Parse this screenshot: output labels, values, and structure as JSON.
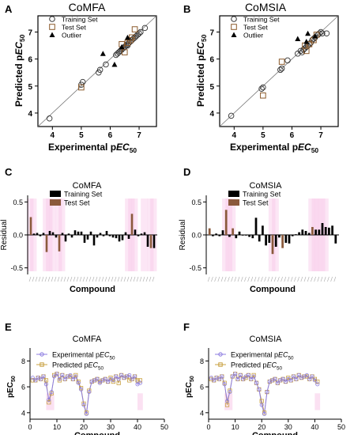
{
  "colors": {
    "circle_stroke": "#333333",
    "square_stroke": "#8b5a2b",
    "outlier": "#000000",
    "training_bar": "#000000",
    "test_bar": "#8b5a3c",
    "test_bar_alt": "#a0522d",
    "pink_bg": "#f8c8e8",
    "exp_line": "#8c7ce0",
    "pred_line": "#c8a040"
  },
  "panels": {
    "A": {
      "letter": "A",
      "title": "CoMFA"
    },
    "B": {
      "letter": "B",
      "title": "CoMSIA"
    },
    "C": {
      "letter": "C",
      "title": "CoMFA"
    },
    "D": {
      "letter": "D",
      "title": "CoMSIA"
    },
    "E": {
      "letter": "E",
      "title": "CoMFA"
    },
    "F": {
      "letter": "F",
      "title": "CoMSIA"
    }
  },
  "chart_data": [
    {
      "panel": "A",
      "type": "scatter",
      "title": "CoMFA",
      "xlabel_main": "Experimental p",
      "xlabel_ital": "EC",
      "xlabel_sub": "50",
      "ylabel_main": "Predicted p",
      "ylabel_ital": "EC",
      "ylabel_sub": "50",
      "xlim": [
        3.5,
        7.6
      ],
      "ylim": [
        3.5,
        7.6
      ],
      "xticks": [
        "4",
        "5",
        "6",
        "7"
      ],
      "yticks": [
        "4",
        "5",
        "6",
        "7"
      ],
      "legend": [
        "Training Set",
        "Test Set",
        "Outlier"
      ],
      "series": [
        {
          "name": "Training Set",
          "x": [
            3.9,
            5.0,
            5.05,
            5.6,
            5.65,
            5.85,
            6.2,
            6.3,
            6.4,
            6.5,
            6.55,
            6.6,
            6.65,
            6.7,
            6.75,
            6.8,
            6.85,
            6.9,
            6.95,
            7.0,
            7.05,
            7.2,
            6.35,
            6.45,
            6.25,
            6.6
          ],
          "y": [
            3.8,
            5.05,
            5.15,
            5.5,
            5.6,
            5.8,
            6.15,
            6.25,
            6.35,
            6.45,
            6.5,
            6.55,
            6.6,
            6.65,
            6.7,
            6.75,
            6.8,
            6.85,
            6.9,
            6.95,
            7.0,
            7.15,
            6.3,
            6.4,
            6.2,
            6.5
          ]
        },
        {
          "name": "Test Set",
          "x": [
            5.0,
            6.5,
            6.6,
            6.7,
            6.75,
            6.85,
            6.4
          ],
          "y": [
            4.95,
            6.25,
            6.6,
            6.7,
            6.8,
            7.1,
            6.55
          ]
        },
        {
          "name": "Outlier",
          "x": [
            5.75,
            6.15,
            6.4,
            6.6
          ],
          "y": [
            6.2,
            5.8,
            6.45,
            6.8
          ]
        }
      ]
    },
    {
      "panel": "B",
      "type": "scatter",
      "title": "CoMSIA",
      "xlabel_main": "Experimental p",
      "xlabel_ital": "EC",
      "xlabel_sub": "50",
      "ylabel_main": "Predicted p",
      "ylabel_ital": "EC",
      "ylabel_sub": "50",
      "xlim": [
        3.5,
        7.6
      ],
      "ylim": [
        3.5,
        7.6
      ],
      "xticks": [
        "4",
        "5",
        "6",
        "7"
      ],
      "yticks": [
        "4",
        "5",
        "6",
        "7"
      ],
      "legend": [
        "Training Set",
        "Test Set",
        "Outlier"
      ],
      "series": [
        {
          "name": "Training Set",
          "x": [
            3.9,
            4.95,
            5.0,
            5.6,
            5.65,
            5.85,
            6.2,
            6.3,
            6.4,
            6.5,
            6.55,
            6.6,
            6.65,
            6.7,
            6.75,
            6.8,
            6.9,
            6.95,
            7.0,
            7.05,
            7.2,
            6.35,
            6.45
          ],
          "y": [
            3.9,
            4.9,
            4.95,
            5.6,
            5.65,
            5.95,
            6.2,
            6.3,
            6.35,
            6.45,
            6.5,
            6.55,
            6.6,
            6.7,
            6.75,
            6.8,
            6.9,
            6.95,
            7.0,
            6.95,
            6.95,
            6.25,
            6.4
          ]
        },
        {
          "name": "Test Set",
          "x": [
            5.0,
            5.65,
            6.6,
            6.75,
            6.85,
            6.5,
            6.45
          ],
          "y": [
            4.65,
            5.9,
            6.55,
            6.7,
            6.9,
            6.3,
            6.5
          ]
        },
        {
          "name": "Outlier",
          "x": [
            6.2,
            6.5,
            6.55,
            6.8
          ],
          "y": [
            6.75,
            6.65,
            6.95,
            6.85
          ]
        }
      ]
    },
    {
      "panel": "C",
      "type": "bar",
      "title": "CoMFA",
      "xlabel": "Compound",
      "ylabel": "Residual",
      "ylim": [
        -0.6,
        0.6
      ],
      "yticks": [
        "0.5",
        "0.0",
        "-0.5"
      ],
      "legend": [
        "Training Set",
        "Test Set"
      ],
      "values": [
        0.27,
        0.02,
        0.03,
        -0.02,
        0.03,
        -0.26,
        0.06,
        0.04,
        -0.04,
        -0.25,
        0.03,
        -0.1,
        0.02,
        -0.04,
        0.07,
        0.05,
        0.05,
        -0.12,
        -0.07,
        0.05,
        -0.16,
        -0.04,
        0.03,
        -0.02,
        0.06,
        -0.02,
        -0.04,
        -0.05,
        -0.1,
        -0.08,
        0.04,
        -0.06,
        0.32,
        0.08,
        -0.02,
        0.02,
        0.04,
        -0.18,
        -0.2,
        -0.2
      ],
      "test_idx": [
        0,
        5,
        9,
        32,
        38
      ],
      "pink_idx": [
        0,
        1,
        5,
        6,
        7,
        9,
        10,
        31,
        32,
        33,
        36,
        38,
        39
      ]
    },
    {
      "panel": "D",
      "type": "bar",
      "title": "CoMSIA",
      "xlabel": "Compound",
      "ylabel": "Residual",
      "ylim": [
        -0.6,
        0.6
      ],
      "yticks": [
        "0.5",
        "0.0",
        "-0.5"
      ],
      "legend": [
        "Training Set",
        "Test Set"
      ],
      "values": [
        0.1,
        -0.02,
        0.02,
        -0.02,
        0.07,
        0.38,
        -0.03,
        0.1,
        -0.05,
        0.05,
        -0.01,
        -0.01,
        -0.03,
        -0.05,
        0.26,
        -0.1,
        0.14,
        -0.16,
        -0.12,
        -0.29,
        -0.18,
        -0.04,
        -0.2,
        -0.12,
        -0.13,
        -0.02,
        0.01,
        0.04,
        0.08,
        0.06,
        0.03,
        0.12,
        0.08,
        0.08,
        0.18,
        0.12,
        0.11,
        0.14,
        -0.13
      ],
      "test_idx": [
        0,
        5,
        7,
        19,
        22,
        31
      ],
      "pink_idx": [
        5,
        6,
        7,
        19,
        20,
        31,
        32,
        33,
        34,
        35
      ]
    },
    {
      "panel": "E",
      "type": "line",
      "title": "CoMFA",
      "xlabel": "Compound",
      "ylabel_main": "pEC",
      "ylabel_sub": "50",
      "xlim": [
        0,
        50
      ],
      "ylim": [
        3.5,
        9
      ],
      "xticks": [
        "0",
        "10",
        "20",
        "30",
        "40",
        "50"
      ],
      "yticks": [
        "4",
        "6",
        "8"
      ],
      "series": [
        {
          "name": "Experimental pEC50",
          "x": [
            1,
            2,
            3,
            4,
            5,
            6,
            7,
            8,
            9,
            10,
            11,
            12,
            13,
            14,
            15,
            16,
            17,
            18,
            19,
            20,
            21,
            22,
            23,
            24,
            25,
            26,
            27,
            28,
            29,
            30,
            31,
            32,
            33,
            34,
            35,
            36,
            37,
            38,
            39,
            40,
            41
          ],
          "y": [
            6.7,
            6.5,
            6.7,
            6.6,
            6.8,
            6.2,
            5.0,
            5.6,
            6.8,
            7.0,
            6.6,
            6.9,
            6.6,
            6.8,
            6.9,
            6.6,
            6.8,
            6.3,
            5.8,
            4.6,
            3.9,
            5.6,
            6.4,
            6.5,
            6.6,
            6.3,
            6.5,
            6.6,
            6.4,
            6.6,
            6.5,
            6.8,
            6.6,
            6.9,
            6.7,
            6.8,
            6.9,
            6.6,
            6.8,
            6.2,
            6.3
          ]
        },
        {
          "name": "Predicted pEC50",
          "x": [
            1,
            2,
            3,
            4,
            5,
            6,
            7,
            8,
            9,
            10,
            11,
            12,
            13,
            14,
            15,
            16,
            17,
            18,
            19,
            20,
            21,
            22,
            23,
            24,
            25,
            26,
            27,
            28,
            29,
            30,
            31,
            32,
            33,
            34,
            35,
            36,
            37,
            38,
            39,
            40,
            41
          ],
          "y": [
            6.5,
            6.5,
            6.7,
            6.6,
            6.8,
            6.5,
            4.8,
            5.5,
            6.9,
            7.0,
            6.5,
            6.9,
            6.6,
            6.8,
            6.8,
            6.6,
            6.9,
            6.4,
            5.9,
            4.7,
            4.0,
            5.7,
            6.4,
            6.5,
            6.6,
            6.4,
            6.5,
            6.6,
            6.4,
            6.7,
            6.4,
            6.8,
            6.3,
            6.9,
            6.7,
            6.8,
            6.5,
            6.6,
            6.8,
            6.5,
            6.5
          ]
        }
      ],
      "legend_prefix": "Experimental p",
      "legend_prefix2": "Predicted p",
      "legend_ital": "EC",
      "legend_sub": "50"
    },
    {
      "panel": "F",
      "type": "line",
      "title": "CoMSIA",
      "xlabel": "Compound",
      "ylabel_main": "pEC",
      "ylabel_sub": "50",
      "xlim": [
        0,
        50
      ],
      "ylim": [
        3.5,
        9
      ],
      "xticks": [
        "0",
        "10",
        "20",
        "30",
        "40",
        "50"
      ],
      "yticks": [
        "4",
        "6",
        "8"
      ],
      "series": [
        {
          "name": "Experimental pEC50",
          "x": [
            1,
            2,
            3,
            4,
            5,
            6,
            7,
            8,
            9,
            10,
            11,
            12,
            13,
            14,
            15,
            16,
            17,
            18,
            19,
            20,
            21,
            22,
            23,
            24,
            25,
            26,
            27,
            28,
            29,
            30,
            31,
            32,
            33,
            34,
            35,
            36,
            37,
            38,
            39,
            40,
            41
          ],
          "y": [
            6.7,
            6.5,
            6.7,
            6.6,
            6.8,
            6.2,
            4.9,
            5.6,
            6.8,
            7.0,
            6.6,
            6.9,
            6.6,
            6.8,
            6.9,
            6.6,
            6.8,
            6.3,
            5.8,
            4.6,
            3.9,
            5.6,
            6.4,
            6.5,
            6.6,
            6.3,
            6.5,
            6.6,
            6.4,
            6.6,
            6.5,
            6.8,
            6.6,
            6.9,
            6.7,
            6.8,
            6.9,
            6.6,
            6.8,
            6.5,
            6.2
          ]
        },
        {
          "name": "Predicted pEC50",
          "x": [
            1,
            2,
            3,
            4,
            5,
            6,
            7,
            8,
            9,
            10,
            11,
            12,
            13,
            14,
            15,
            16,
            17,
            18,
            19,
            20,
            21,
            22,
            23,
            24,
            25,
            26,
            27,
            28,
            29,
            30,
            31,
            32,
            33,
            34,
            35,
            36,
            37,
            38,
            39,
            40,
            41
          ],
          "y": [
            6.6,
            6.5,
            6.7,
            6.6,
            6.8,
            6.3,
            4.6,
            5.7,
            6.8,
            7.0,
            6.6,
            6.9,
            6.6,
            6.7,
            6.9,
            6.6,
            6.9,
            6.3,
            5.8,
            4.9,
            4.0,
            5.6,
            6.4,
            6.5,
            6.6,
            6.3,
            6.5,
            6.6,
            6.4,
            6.7,
            6.5,
            6.8,
            6.6,
            6.9,
            6.7,
            6.8,
            6.8,
            6.6,
            6.8,
            6.6,
            6.4
          ]
        }
      ],
      "legend_prefix": "Experimental p",
      "legend_prefix2": "Predicted p",
      "legend_ital": "EC",
      "legend_sub": "50"
    }
  ]
}
